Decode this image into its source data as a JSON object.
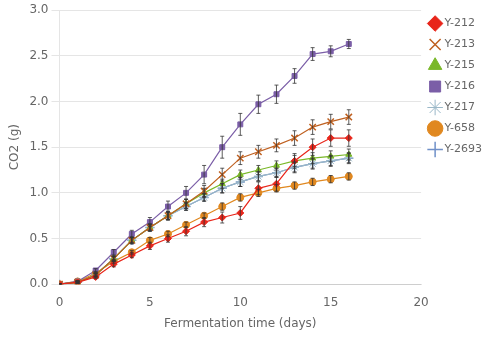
{
  "chart_data": {
    "type": "line",
    "xlabel": "Fermentation time (days)",
    "ylabel": "CO2 (g)",
    "xlim": [
      0,
      20
    ],
    "ylim": [
      0,
      3
    ],
    "xticks": [
      0,
      5,
      10,
      15,
      20
    ],
    "yticks": [
      {
        "value": 0,
        "label": "0.0"
      },
      0.5,
      {
        "value": 1,
        "label": "1.0"
      },
      1.5,
      {
        "value": 2,
        "label": "2.0"
      },
      2.5,
      {
        "value": 3,
        "label": "3.0"
      }
    ],
    "grid": "y",
    "legend": "right",
    "x": [
      0,
      1,
      2,
      3,
      4,
      5,
      6,
      7,
      8,
      9,
      10,
      11,
      12,
      13,
      14,
      15,
      16
    ],
    "series": [
      {
        "name": "Y-212",
        "color": "#e8251a",
        "marker": "diamond",
        "values": [
          0.0,
          0.02,
          0.08,
          0.22,
          0.32,
          0.42,
          0.5,
          0.58,
          0.68,
          0.73,
          0.78,
          1.05,
          1.1,
          1.35,
          1.5,
          1.6,
          1.6
        ],
        "yerr": [
          0.0,
          0.01,
          0.02,
          0.03,
          0.03,
          0.04,
          0.04,
          0.05,
          0.05,
          0.06,
          0.07,
          0.07,
          0.08,
          0.08,
          0.09,
          0.09,
          0.09
        ]
      },
      {
        "name": "Y-213",
        "color": "#bf6020",
        "marker": "x",
        "values": [
          0.0,
          0.02,
          0.1,
          0.28,
          0.48,
          0.62,
          0.75,
          0.88,
          1.02,
          1.2,
          1.38,
          1.45,
          1.52,
          1.6,
          1.72,
          1.78,
          1.83
        ],
        "yerr": [
          0.0,
          0.01,
          0.02,
          0.03,
          0.04,
          0.04,
          0.05,
          0.05,
          0.06,
          0.07,
          0.07,
          0.07,
          0.07,
          0.08,
          0.08,
          0.08,
          0.08
        ]
      },
      {
        "name": "Y-215",
        "color": "#7ab829",
        "marker": "triangle",
        "values": [
          0.0,
          0.02,
          0.1,
          0.28,
          0.48,
          0.62,
          0.75,
          0.88,
          1.0,
          1.1,
          1.2,
          1.25,
          1.3,
          1.35,
          1.38,
          1.4,
          1.42
        ],
        "yerr": [
          0.0,
          0.01,
          0.02,
          0.03,
          0.03,
          0.04,
          0.04,
          0.05,
          0.05,
          0.05,
          0.05,
          0.05,
          0.05,
          0.06,
          0.06,
          0.06,
          0.06
        ]
      },
      {
        "name": "Y-216",
        "color": "#7b5ea7",
        "marker": "square",
        "values": [
          0.0,
          0.03,
          0.15,
          0.35,
          0.55,
          0.68,
          0.85,
          1.0,
          1.2,
          1.5,
          1.75,
          1.97,
          2.08,
          2.28,
          2.52,
          2.55,
          2.63
        ],
        "yerr": [
          0.0,
          0.01,
          0.02,
          0.03,
          0.04,
          0.05,
          0.06,
          0.07,
          0.1,
          0.12,
          0.12,
          0.1,
          0.1,
          0.08,
          0.07,
          0.06,
          0.05
        ]
      },
      {
        "name": "Y-217",
        "color": "#9ab8c8",
        "marker": "star",
        "values": [
          0.0,
          0.02,
          0.1,
          0.28,
          0.48,
          0.62,
          0.75,
          0.85,
          0.95,
          1.05,
          1.12,
          1.18,
          1.22,
          1.28,
          1.32,
          1.35,
          1.38
        ],
        "yerr": [
          0.0,
          0.01,
          0.02,
          0.02,
          0.03,
          0.03,
          0.04,
          0.04,
          0.04,
          0.05,
          0.05,
          0.05,
          0.05,
          0.06,
          0.06,
          0.06,
          0.06
        ]
      },
      {
        "name": "Y-658",
        "color": "#e08820",
        "marker": "circle",
        "values": [
          0.0,
          0.03,
          0.12,
          0.25,
          0.35,
          0.48,
          0.55,
          0.65,
          0.75,
          0.85,
          0.95,
          1.0,
          1.05,
          1.08,
          1.12,
          1.15,
          1.18
        ],
        "yerr": [
          0.0,
          0.01,
          0.02,
          0.02,
          0.02,
          0.03,
          0.03,
          0.03,
          0.03,
          0.04,
          0.04,
          0.04,
          0.04,
          0.04,
          0.04,
          0.04,
          0.04
        ]
      },
      {
        "name": "Y-2693",
        "color": "#7090c8",
        "marker": "plus",
        "values": [
          0.0,
          0.02,
          0.1,
          0.28,
          0.48,
          0.62,
          0.75,
          0.85,
          0.95,
          1.05,
          1.12,
          1.18,
          1.22,
          1.28,
          1.32,
          1.35,
          1.38
        ],
        "yerr": [
          0.0,
          0.01,
          0.02,
          0.02,
          0.03,
          0.03,
          0.04,
          0.04,
          0.04,
          0.05,
          0.05,
          0.05,
          0.05,
          0.05,
          0.05,
          0.05,
          0.05
        ]
      }
    ]
  }
}
